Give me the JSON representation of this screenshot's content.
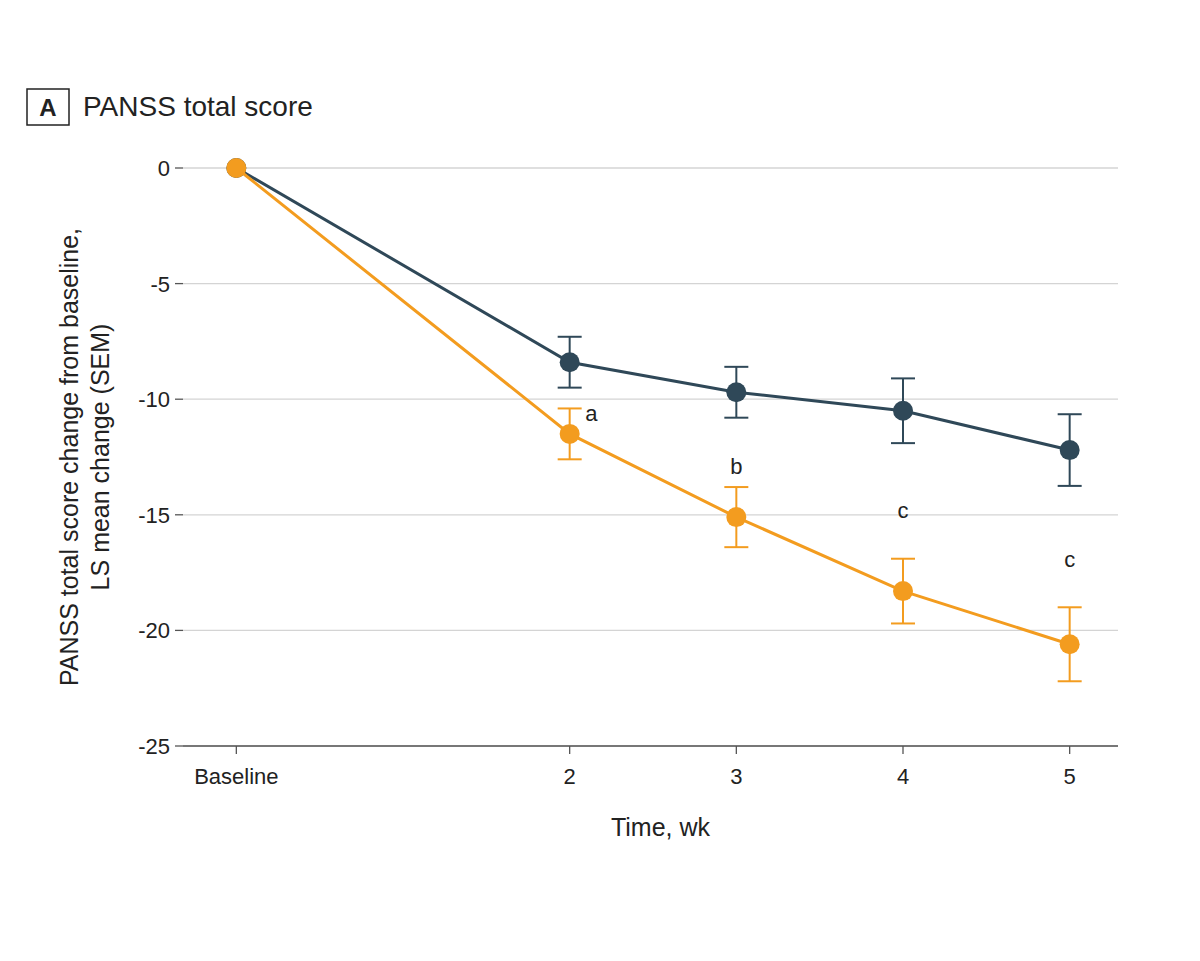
{
  "chart_data": {
    "type": "line",
    "panel": "A",
    "title": "PANSS total score",
    "x_label": "Time, wk",
    "y_label": [
      "PANSS total score change from baseline,",
      "LS mean change (SEM)"
    ],
    "x": [
      0,
      2,
      3,
      4,
      5
    ],
    "xlim": [
      -0.32,
      5.29
    ],
    "xticks": [
      {
        "value": 0,
        "label": "Baseline"
      },
      2,
      3,
      4,
      5
    ],
    "ylim": [
      -25,
      0
    ],
    "yticks": [
      0,
      -5,
      -10,
      -15,
      -20,
      -25
    ],
    "grid": true,
    "marker": "circle",
    "series": [
      {
        "color": "#2f4858",
        "values": [
          0,
          -8.4,
          -9.7,
          -10.5,
          -12.2
        ],
        "errors": [
          null,
          1.1,
          1.1,
          1.4,
          1.55
        ]
      },
      {
        "color": "#f39c1f",
        "values": [
          0,
          -11.5,
          -15.1,
          -18.3,
          -20.6
        ],
        "errors": [
          null,
          1.1,
          1.3,
          1.4,
          1.6
        ]
      }
    ],
    "annotations": [
      {
        "text": "a",
        "x": 2.13,
        "y": -10.6
      },
      {
        "text": "b",
        "x": 3,
        "y": -12.9
      },
      {
        "text": "c",
        "x": 4,
        "y": -14.8
      },
      {
        "text": "c",
        "x": 5,
        "y": -16.9
      }
    ]
  }
}
